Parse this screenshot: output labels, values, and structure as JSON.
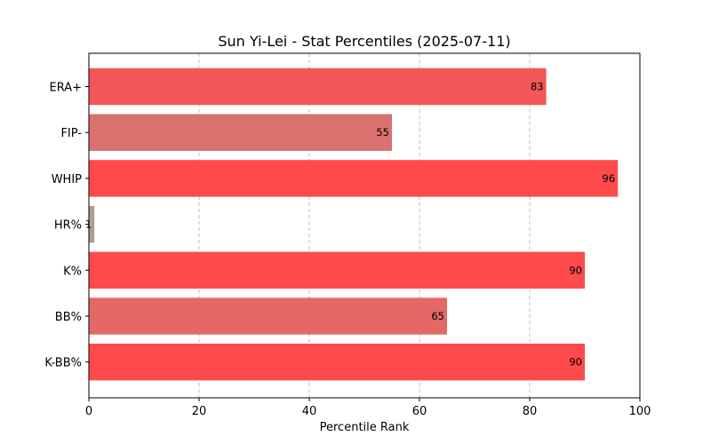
{
  "chart_data": {
    "type": "bar",
    "orientation": "horizontal",
    "title": "Sun Yi-Lei - Stat Percentiles (2025-07-11)",
    "xlabel": "Percentile Rank",
    "ylabel": "",
    "xlim": [
      0,
      100
    ],
    "xticks": [
      0,
      20,
      40,
      60,
      80,
      100
    ],
    "grid": "x-dashed",
    "categories": [
      "ERA+",
      "FIP-",
      "WHIP",
      "HR%",
      "K%",
      "BB%",
      "K-BB%"
    ],
    "values": [
      83,
      55,
      96,
      1,
      90,
      65,
      90
    ],
    "colors": [
      "#f35656",
      "#d9716f",
      "#ff4a4b",
      "#b09b98",
      "#ff4a4b",
      "#e46866",
      "#ff4a4b"
    ]
  }
}
